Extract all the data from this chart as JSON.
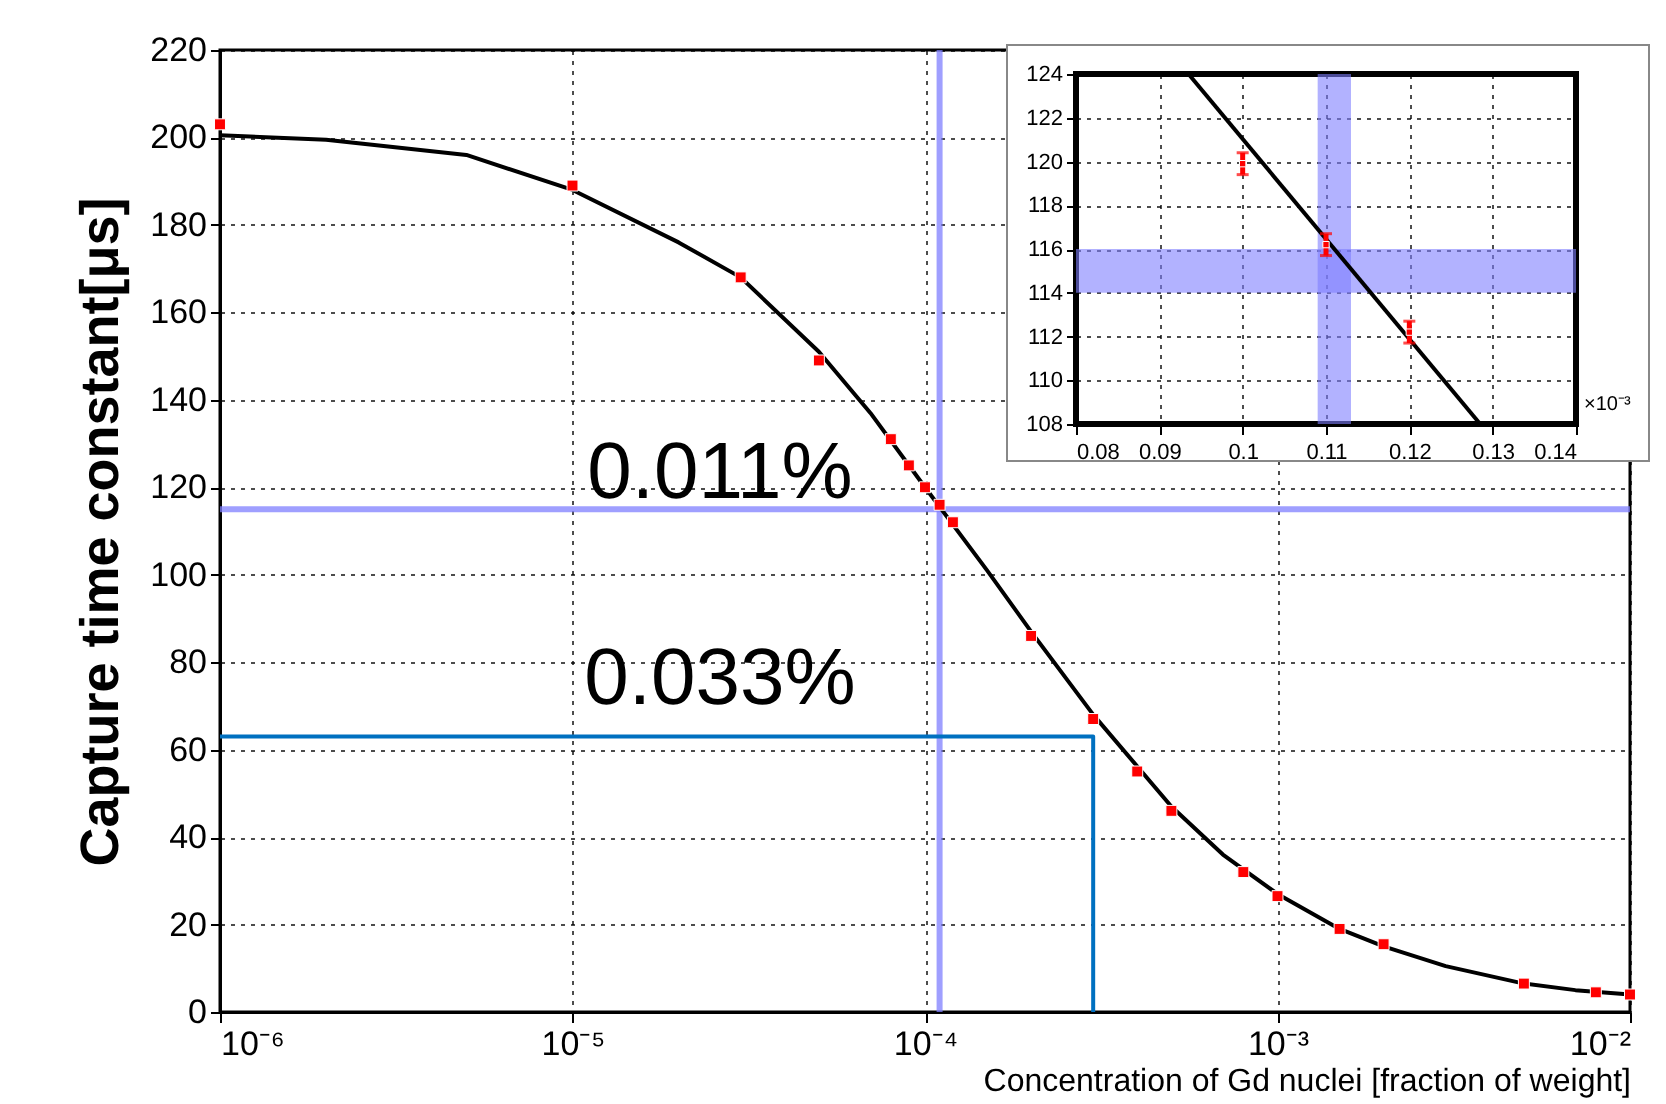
{
  "chart_data": [
    {
      "type": "scatter",
      "xlabel": "Concentration of Gd nuclei [fraction of weight]",
      "ylabel": "Capture time constant[μs]",
      "log": "x",
      "grid": true,
      "xlim": [
        1e-06,
        0.01
      ],
      "xticks": [
        {
          "value": 1e-06,
          "label": "10⁻⁶"
        },
        {
          "value": 1e-05,
          "label": "10⁻⁵"
        },
        {
          "value": 0.0001,
          "label": "10⁻⁴"
        },
        {
          "value": 0.001,
          "label": "10⁻³"
        },
        {
          "value": 0.01,
          "label": "10⁻²"
        }
      ],
      "ylim": [
        0,
        220
      ],
      "yticks": [
        0,
        20,
        40,
        60,
        80,
        100,
        120,
        140,
        160,
        180,
        200,
        220
      ],
      "series": [
        {
          "type": "scatter",
          "marker": "square",
          "color": "#ff0000",
          "x": [
            1e-06,
            1e-05,
            3e-05,
            5e-05,
            8e-05,
            9e-05,
            0.0001,
            0.00011,
            0.00012,
            0.0002,
            0.0003,
            0.0004,
            0.0005,
            0.0008,
            0.001,
            0.0015,
            0.002,
            0.005,
            0.008,
            0.01
          ],
          "values": [
            203,
            189,
            168,
            149,
            131,
            125,
            120,
            116,
            112,
            86,
            67,
            55,
            46,
            32,
            26.5,
            19,
            15.5,
            6.5,
            4.5,
            4
          ]
        },
        {
          "type": "line",
          "color": "#000000",
          "x": [
            1e-06,
            2e-06,
            5e-06,
            1e-05,
            2e-05,
            3e-05,
            5e-05,
            7e-05,
            0.0001,
            0.00015,
            0.0002,
            0.0003,
            0.0005,
            0.0007,
            0.001,
            0.0015,
            0.002,
            0.003,
            0.005,
            0.007,
            0.01
          ],
          "values": [
            200.5,
            199.5,
            196,
            188,
            176,
            168,
            151,
            137,
            120,
            101,
            87,
            68,
            47,
            36,
            27,
            19,
            15,
            10.5,
            6.5,
            5,
            4
          ]
        },
        {
          "type": "line",
          "color": "#0070c0",
          "x": [
            1e-06,
            0.0003,
            0.0003
          ],
          "values": [
            63,
            63,
            0
          ]
        }
      ],
      "ref_lines": [
        {
          "axis": "y",
          "value": 115,
          "color": "#7f7fff"
        },
        {
          "axis": "x",
          "value": 0.00011,
          "color": "#7f7fff"
        }
      ],
      "annotations": [
        "0.011%",
        "0.033%"
      ]
    },
    {
      "type": "scatter",
      "grid": true,
      "xlim": [
        0.08,
        0.14
      ],
      "xticks": [
        0.08,
        0.09,
        0.1,
        0.11,
        0.12,
        0.13,
        0.14
      ],
      "ylim": [
        108,
        124
      ],
      "yticks": [
        108,
        110,
        112,
        114,
        116,
        118,
        120,
        122,
        124
      ],
      "series": [
        {
          "type": "scatter",
          "marker": "square",
          "color": "#ff0000",
          "x": [
            0.1,
            0.11,
            0.12
          ],
          "values": [
            119.9,
            116.2,
            112.2
          ],
          "errors": [
            0.5,
            0.5,
            0.5
          ]
        },
        {
          "type": "line",
          "color": "#000000",
          "x": [
            0.0935,
            0.1285
          ],
          "values": [
            124,
            108
          ]
        }
      ],
      "bands": [
        {
          "axis": "y",
          "from": 114,
          "to": 116,
          "color": "#7f7fff"
        },
        {
          "axis": "x",
          "from": 0.109,
          "to": 0.113,
          "color": "#7f7fff"
        }
      ],
      "annotations": [
        "×10⁻³"
      ]
    }
  ]
}
